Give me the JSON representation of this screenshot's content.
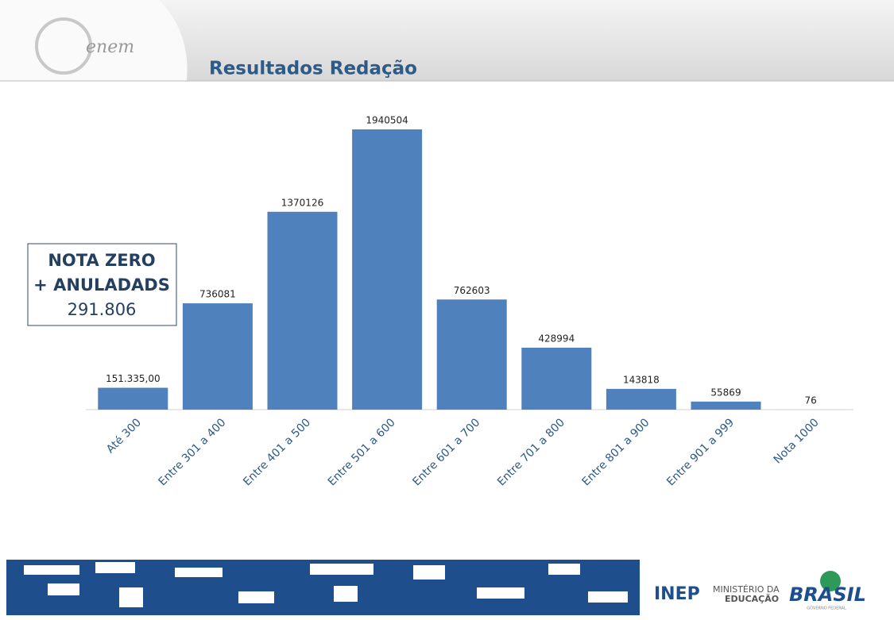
{
  "header": {
    "logo": "enem"
  },
  "chart_data": {
    "type": "bar",
    "title": "Resultados Redação",
    "categories": [
      "Até 300",
      "Entre 301 a 400",
      "Entre 401 a 500",
      "Entre 501 a 600",
      "Entre 601 a 700",
      "Entre 701 a 800",
      "Entre 801 a 900",
      "Entre 901 a 999",
      "Nota 1000"
    ],
    "values": [
      151335,
      736081,
      1370126,
      1940504,
      762603,
      428994,
      143818,
      55869,
      76
    ],
    "value_labels": [
      "151.335,00",
      "736081",
      "1370126",
      "1940504",
      "762603",
      "428994",
      "143818",
      "55869",
      "76"
    ],
    "color": "#4f81bd",
    "annotation": {
      "lines": [
        "NOTA ZERO",
        "+ ANULADADS",
        "291.806"
      ]
    }
  },
  "footer": {
    "inep": "INEP",
    "ministry": [
      "MINISTÉRIO DA",
      "EDUCAÇÃO"
    ],
    "brasil": "BRASIL",
    "government": "GOVERNO FEDERAL"
  }
}
